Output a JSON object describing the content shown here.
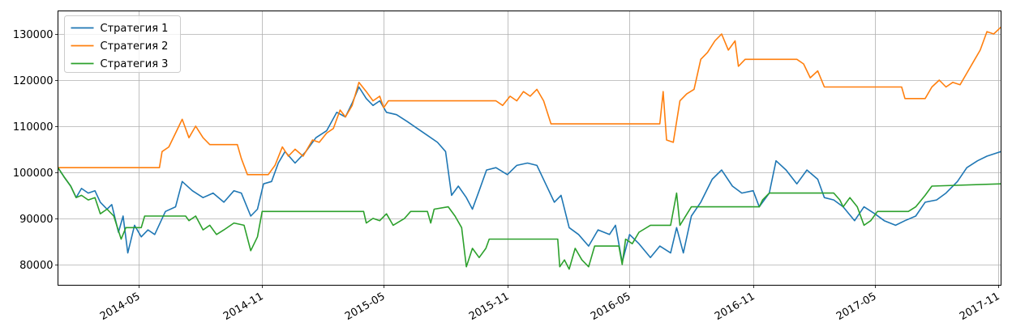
{
  "chart_data": {
    "type": "line",
    "title": "",
    "xlabel": "",
    "ylabel": "",
    "xlim": [
      "2014-01-01",
      "2017-11-05"
    ],
    "ylim": [
      75500,
      135000
    ],
    "grid": true,
    "legend_position": "top-left",
    "x_ticks": [
      {
        "date": "2014-05-01",
        "label": "2014-05"
      },
      {
        "date": "2014-11-01",
        "label": "2014-11"
      },
      {
        "date": "2015-05-01",
        "label": "2015-05"
      },
      {
        "date": "2015-11-01",
        "label": "2015-11"
      },
      {
        "date": "2016-05-01",
        "label": "2016-05"
      },
      {
        "date": "2016-11-01",
        "label": "2016-11"
      },
      {
        "date": "2017-05-01",
        "label": "2017-05"
      },
      {
        "date": "2017-11-01",
        "label": "2017-11"
      }
    ],
    "y_ticks": [
      {
        "value": 80000,
        "label": "80000"
      },
      {
        "value": 90000,
        "label": "90000"
      },
      {
        "value": 100000,
        "label": "100000"
      },
      {
        "value": 110000,
        "label": "110000"
      },
      {
        "value": 120000,
        "label": "120000"
      },
      {
        "value": 130000,
        "label": "130000"
      }
    ],
    "series": [
      {
        "name": "Стратегия 1",
        "color": "#1f77b4",
        "points": [
          [
            "2014-01-01",
            101000
          ],
          [
            "2014-01-10",
            99000
          ],
          [
            "2014-01-20",
            97000
          ],
          [
            "2014-01-28",
            94500
          ],
          [
            "2014-02-05",
            96500
          ],
          [
            "2014-02-15",
            95500
          ],
          [
            "2014-02-25",
            96000
          ],
          [
            "2014-03-05",
            93500
          ],
          [
            "2014-03-15",
            92000
          ],
          [
            "2014-03-22",
            93000
          ],
          [
            "2014-04-01",
            87000
          ],
          [
            "2014-04-08",
            90500
          ],
          [
            "2014-04-15",
            82500
          ],
          [
            "2014-04-25",
            88500
          ],
          [
            "2014-05-05",
            86000
          ],
          [
            "2014-05-15",
            87500
          ],
          [
            "2014-05-25",
            86500
          ],
          [
            "2014-06-10",
            91500
          ],
          [
            "2014-06-25",
            92500
          ],
          [
            "2014-07-05",
            98000
          ],
          [
            "2014-07-20",
            96000
          ],
          [
            "2014-08-05",
            94500
          ],
          [
            "2014-08-20",
            95500
          ],
          [
            "2014-09-05",
            93500
          ],
          [
            "2014-09-20",
            96000
          ],
          [
            "2014-10-01",
            95500
          ],
          [
            "2014-10-15",
            90500
          ],
          [
            "2014-10-25",
            92000
          ],
          [
            "2014-11-03",
            97500
          ],
          [
            "2014-11-15",
            98000
          ],
          [
            "2014-11-25",
            102000
          ],
          [
            "2014-12-05",
            104500
          ],
          [
            "2014-12-20",
            102000
          ],
          [
            "2015-01-05",
            104500
          ],
          [
            "2015-01-20",
            107500
          ],
          [
            "2015-02-05",
            109000
          ],
          [
            "2015-02-20",
            113000
          ],
          [
            "2015-03-05",
            112000
          ],
          [
            "2015-03-15",
            115000
          ],
          [
            "2015-03-25",
            118500
          ],
          [
            "2015-04-05",
            116000
          ],
          [
            "2015-04-15",
            114500
          ],
          [
            "2015-04-25",
            115500
          ],
          [
            "2015-05-05",
            113000
          ],
          [
            "2015-05-20",
            112500
          ],
          [
            "2015-06-05",
            111000
          ],
          [
            "2015-06-20",
            109500
          ],
          [
            "2015-07-05",
            108000
          ],
          [
            "2015-07-20",
            106500
          ],
          [
            "2015-08-01",
            104500
          ],
          [
            "2015-08-10",
            95000
          ],
          [
            "2015-08-20",
            97000
          ],
          [
            "2015-09-01",
            94500
          ],
          [
            "2015-09-10",
            92000
          ],
          [
            "2015-09-20",
            96000
          ],
          [
            "2015-10-01",
            100500
          ],
          [
            "2015-10-15",
            101000
          ],
          [
            "2015-11-01",
            99500
          ],
          [
            "2015-11-15",
            101500
          ],
          [
            "2015-12-01",
            102000
          ],
          [
            "2015-12-15",
            101500
          ],
          [
            "2015-12-28",
            97500
          ],
          [
            "2016-01-10",
            93500
          ],
          [
            "2016-01-20",
            95000
          ],
          [
            "2016-02-01",
            88000
          ],
          [
            "2016-02-15",
            86500
          ],
          [
            "2016-03-01",
            84000
          ],
          [
            "2016-03-15",
            87500
          ],
          [
            "2016-04-01",
            86500
          ],
          [
            "2016-04-10",
            88500
          ],
          [
            "2016-04-20",
            80500
          ],
          [
            "2016-05-01",
            86500
          ],
          [
            "2016-05-15",
            84500
          ],
          [
            "2016-06-01",
            81500
          ],
          [
            "2016-06-15",
            84000
          ],
          [
            "2016-07-01",
            82500
          ],
          [
            "2016-07-10",
            88000
          ],
          [
            "2016-07-20",
            82500
          ],
          [
            "2016-08-01",
            90500
          ],
          [
            "2016-08-15",
            93500
          ],
          [
            "2016-09-01",
            98500
          ],
          [
            "2016-09-15",
            100500
          ],
          [
            "2016-10-01",
            97000
          ],
          [
            "2016-10-15",
            95500
          ],
          [
            "2016-11-01",
            96000
          ],
          [
            "2016-11-10",
            92500
          ],
          [
            "2016-11-25",
            95500
          ],
          [
            "2016-12-05",
            102500
          ],
          [
            "2016-12-20",
            100500
          ],
          [
            "2017-01-05",
            97500
          ],
          [
            "2017-01-20",
            100500
          ],
          [
            "2017-02-05",
            98500
          ],
          [
            "2017-02-15",
            94500
          ],
          [
            "2017-03-01",
            94000
          ],
          [
            "2017-03-15",
            92500
          ],
          [
            "2017-04-01",
            89500
          ],
          [
            "2017-04-15",
            92500
          ],
          [
            "2017-05-01",
            91000
          ],
          [
            "2017-05-15",
            89500
          ],
          [
            "2017-06-01",
            88500
          ],
          [
            "2017-06-15",
            89500
          ],
          [
            "2017-07-01",
            90500
          ],
          [
            "2017-07-15",
            93500
          ],
          [
            "2017-08-01",
            94000
          ],
          [
            "2017-08-15",
            95500
          ],
          [
            "2017-09-01",
            98000
          ],
          [
            "2017-09-15",
            101000
          ],
          [
            "2017-10-01",
            102500
          ],
          [
            "2017-10-15",
            103500
          ],
          [
            "2017-11-05",
            104500
          ]
        ]
      },
      {
        "name": "Стратегия 2",
        "color": "#ff7f0e",
        "points": [
          [
            "2014-01-01",
            101000
          ],
          [
            "2014-06-01",
            101000
          ],
          [
            "2014-06-05",
            104500
          ],
          [
            "2014-06-15",
            105500
          ],
          [
            "2014-06-25",
            108500
          ],
          [
            "2014-07-05",
            111500
          ],
          [
            "2014-07-15",
            107500
          ],
          [
            "2014-07-25",
            110000
          ],
          [
            "2014-08-05",
            107500
          ],
          [
            "2014-08-15",
            106000
          ],
          [
            "2014-09-25",
            106000
          ],
          [
            "2014-10-01",
            103000
          ],
          [
            "2014-10-10",
            99500
          ],
          [
            "2014-11-10",
            99500
          ],
          [
            "2014-11-20",
            101500
          ],
          [
            "2014-12-01",
            105500
          ],
          [
            "2014-12-10",
            103500
          ],
          [
            "2014-12-20",
            105000
          ],
          [
            "2015-01-01",
            103500
          ],
          [
            "2015-01-15",
            107000
          ],
          [
            "2015-01-25",
            106500
          ],
          [
            "2015-02-05",
            108500
          ],
          [
            "2015-02-15",
            109500
          ],
          [
            "2015-02-25",
            113500
          ],
          [
            "2015-03-05",
            112000
          ],
          [
            "2015-03-15",
            114500
          ],
          [
            "2015-03-25",
            119500
          ],
          [
            "2015-04-05",
            117500
          ],
          [
            "2015-04-15",
            115500
          ],
          [
            "2015-04-25",
            116500
          ],
          [
            "2015-05-01",
            114000
          ],
          [
            "2015-05-08",
            115500
          ],
          [
            "2015-10-15",
            115500
          ],
          [
            "2015-10-25",
            114500
          ],
          [
            "2015-11-05",
            116500
          ],
          [
            "2015-11-15",
            115500
          ],
          [
            "2015-11-25",
            117500
          ],
          [
            "2015-12-05",
            116500
          ],
          [
            "2015-12-15",
            118000
          ],
          [
            "2015-12-25",
            115500
          ],
          [
            "2016-01-05",
            110500
          ],
          [
            "2016-06-15",
            110500
          ],
          [
            "2016-06-20",
            117500
          ],
          [
            "2016-06-25",
            107000
          ],
          [
            "2016-07-05",
            106500
          ],
          [
            "2016-07-15",
            115500
          ],
          [
            "2016-07-25",
            117000
          ],
          [
            "2016-08-05",
            118000
          ],
          [
            "2016-08-15",
            124500
          ],
          [
            "2016-08-25",
            126000
          ],
          [
            "2016-09-05",
            128500
          ],
          [
            "2016-09-15",
            130000
          ],
          [
            "2016-09-25",
            126500
          ],
          [
            "2016-10-05",
            128500
          ],
          [
            "2016-10-10",
            123000
          ],
          [
            "2016-10-20",
            124500
          ],
          [
            "2017-01-05",
            124500
          ],
          [
            "2017-01-15",
            123500
          ],
          [
            "2017-01-25",
            120500
          ],
          [
            "2017-02-05",
            122000
          ],
          [
            "2017-02-15",
            118500
          ],
          [
            "2017-06-10",
            118500
          ],
          [
            "2017-06-15",
            116000
          ],
          [
            "2017-07-15",
            116000
          ],
          [
            "2017-07-25",
            118500
          ],
          [
            "2017-08-05",
            120000
          ],
          [
            "2017-08-15",
            118500
          ],
          [
            "2017-08-25",
            119500
          ],
          [
            "2017-09-05",
            119000
          ],
          [
            "2017-09-15",
            121500
          ],
          [
            "2017-09-25",
            124000
          ],
          [
            "2017-10-05",
            126500
          ],
          [
            "2017-10-15",
            130500
          ],
          [
            "2017-10-25",
            130000
          ],
          [
            "2017-11-05",
            131500
          ]
        ]
      },
      {
        "name": "Стратегия 3",
        "color": "#2ca02c",
        "points": [
          [
            "2014-01-01",
            101000
          ],
          [
            "2014-01-10",
            99000
          ],
          [
            "2014-01-20",
            97000
          ],
          [
            "2014-01-28",
            94500
          ],
          [
            "2014-02-05",
            95000
          ],
          [
            "2014-02-15",
            94000
          ],
          [
            "2014-02-25",
            94500
          ],
          [
            "2014-03-05",
            91000
          ],
          [
            "2014-03-15",
            92000
          ],
          [
            "2014-03-25",
            90500
          ],
          [
            "2014-04-05",
            85500
          ],
          [
            "2014-04-12",
            88000
          ],
          [
            "2014-05-05",
            88000
          ],
          [
            "2014-05-10",
            90500
          ],
          [
            "2014-07-10",
            90500
          ],
          [
            "2014-07-15",
            89500
          ],
          [
            "2014-07-25",
            90500
          ],
          [
            "2014-08-05",
            87500
          ],
          [
            "2014-08-15",
            88500
          ],
          [
            "2014-08-25",
            86500
          ],
          [
            "2014-09-05",
            87500
          ],
          [
            "2014-09-20",
            89000
          ],
          [
            "2014-10-05",
            88500
          ],
          [
            "2014-10-15",
            83000
          ],
          [
            "2014-10-25",
            86000
          ],
          [
            "2014-11-01",
            91500
          ],
          [
            "2015-04-01",
            91500
          ],
          [
            "2015-04-05",
            89000
          ],
          [
            "2015-04-15",
            90000
          ],
          [
            "2015-04-25",
            89500
          ],
          [
            "2015-05-05",
            91000
          ],
          [
            "2015-05-15",
            88500
          ],
          [
            "2015-06-01",
            90000
          ],
          [
            "2015-06-10",
            91500
          ],
          [
            "2015-07-05",
            91500
          ],
          [
            "2015-07-10",
            89000
          ],
          [
            "2015-07-15",
            92000
          ],
          [
            "2015-08-05",
            92500
          ],
          [
            "2015-08-15",
            90500
          ],
          [
            "2015-08-25",
            88000
          ],
          [
            "2015-09-01",
            79500
          ],
          [
            "2015-09-10",
            83500
          ],
          [
            "2015-09-20",
            81500
          ],
          [
            "2015-09-30",
            83500
          ],
          [
            "2015-10-05",
            85500
          ],
          [
            "2016-01-15",
            85500
          ],
          [
            "2016-01-18",
            79500
          ],
          [
            "2016-01-25",
            81000
          ],
          [
            "2016-02-01",
            79000
          ],
          [
            "2016-02-10",
            83500
          ],
          [
            "2016-02-20",
            81000
          ],
          [
            "2016-03-01",
            79500
          ],
          [
            "2016-03-10",
            84000
          ],
          [
            "2016-04-15",
            84000
          ],
          [
            "2016-04-20",
            80000
          ],
          [
            "2016-04-25",
            85500
          ],
          [
            "2016-05-05",
            84500
          ],
          [
            "2016-05-15",
            87000
          ],
          [
            "2016-06-01",
            88500
          ],
          [
            "2016-07-01",
            88500
          ],
          [
            "2016-07-10",
            95500
          ],
          [
            "2016-07-15",
            88500
          ],
          [
            "2016-08-01",
            92500
          ],
          [
            "2016-11-10",
            92500
          ],
          [
            "2016-11-15",
            94000
          ],
          [
            "2016-11-25",
            95500
          ],
          [
            "2017-03-01",
            95500
          ],
          [
            "2017-03-10",
            94000
          ],
          [
            "2017-03-15",
            92500
          ],
          [
            "2017-03-25",
            94500
          ],
          [
            "2017-04-05",
            92500
          ],
          [
            "2017-04-15",
            88500
          ],
          [
            "2017-04-25",
            89500
          ],
          [
            "2017-05-05",
            91500
          ],
          [
            "2017-06-20",
            91500
          ],
          [
            "2017-07-01",
            92500
          ],
          [
            "2017-07-15",
            95000
          ],
          [
            "2017-07-25",
            97000
          ],
          [
            "2017-11-05",
            97500
          ]
        ]
      }
    ]
  }
}
